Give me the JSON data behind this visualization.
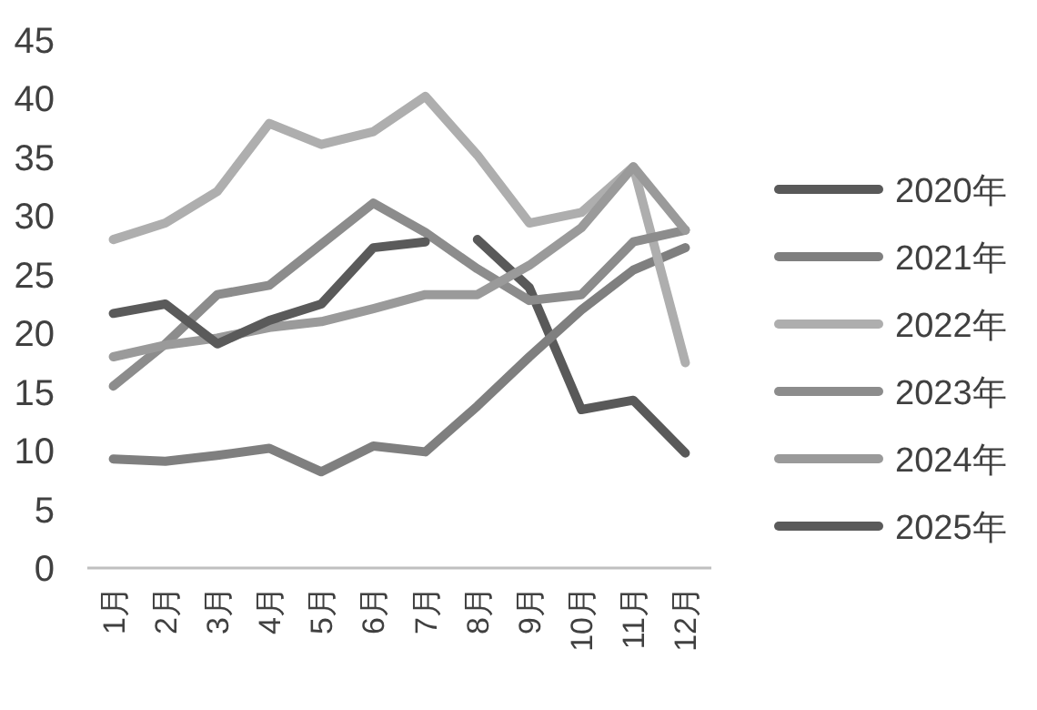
{
  "chart_data": {
    "type": "line",
    "categories": [
      "1月",
      "2月",
      "3月",
      "4月",
      "5月",
      "6月",
      "7月",
      "8月",
      "9月",
      "10月",
      "11月",
      "12月"
    ],
    "series": [
      {
        "name": "2020年",
        "color": "#595959",
        "values": [
          null,
          null,
          null,
          null,
          null,
          null,
          null,
          28.0,
          23.9,
          13.5,
          14.3,
          9.8
        ]
      },
      {
        "name": "2021年",
        "color": "#7f7f7f",
        "values": [
          9.3,
          9.1,
          9.6,
          10.2,
          8.2,
          10.4,
          9.9,
          13.8,
          18.0,
          22.0,
          25.4,
          27.3
        ]
      },
      {
        "name": "2022年",
        "color": "#aeaeae",
        "values": [
          28.0,
          29.4,
          32.1,
          37.9,
          36.1,
          37.2,
          40.2,
          35.2,
          29.4,
          30.3,
          34.2,
          17.5
        ]
      },
      {
        "name": "2023年",
        "color": "#8c8c8c",
        "values": [
          15.5,
          19.1,
          23.3,
          24.1,
          27.6,
          31.1,
          28.6,
          25.5,
          22.8,
          23.3,
          27.8,
          28.8
        ]
      },
      {
        "name": "2024年",
        "color": "#9a9a9a",
        "values": [
          18.0,
          19.0,
          19.6,
          20.5,
          21.0,
          22.1,
          23.3,
          23.3,
          25.8,
          29.0,
          34.2,
          28.8
        ]
      },
      {
        "name": "2025年",
        "color": "#5a5a5a",
        "values": [
          21.7,
          22.5,
          19.1,
          21.1,
          22.5,
          27.3,
          27.8,
          null,
          null,
          null,
          null,
          null
        ]
      }
    ],
    "ylim": [
      0,
      45
    ],
    "yticks": [
      0,
      5,
      10,
      15,
      20,
      25,
      30,
      35,
      40,
      45
    ],
    "legend": "right"
  }
}
